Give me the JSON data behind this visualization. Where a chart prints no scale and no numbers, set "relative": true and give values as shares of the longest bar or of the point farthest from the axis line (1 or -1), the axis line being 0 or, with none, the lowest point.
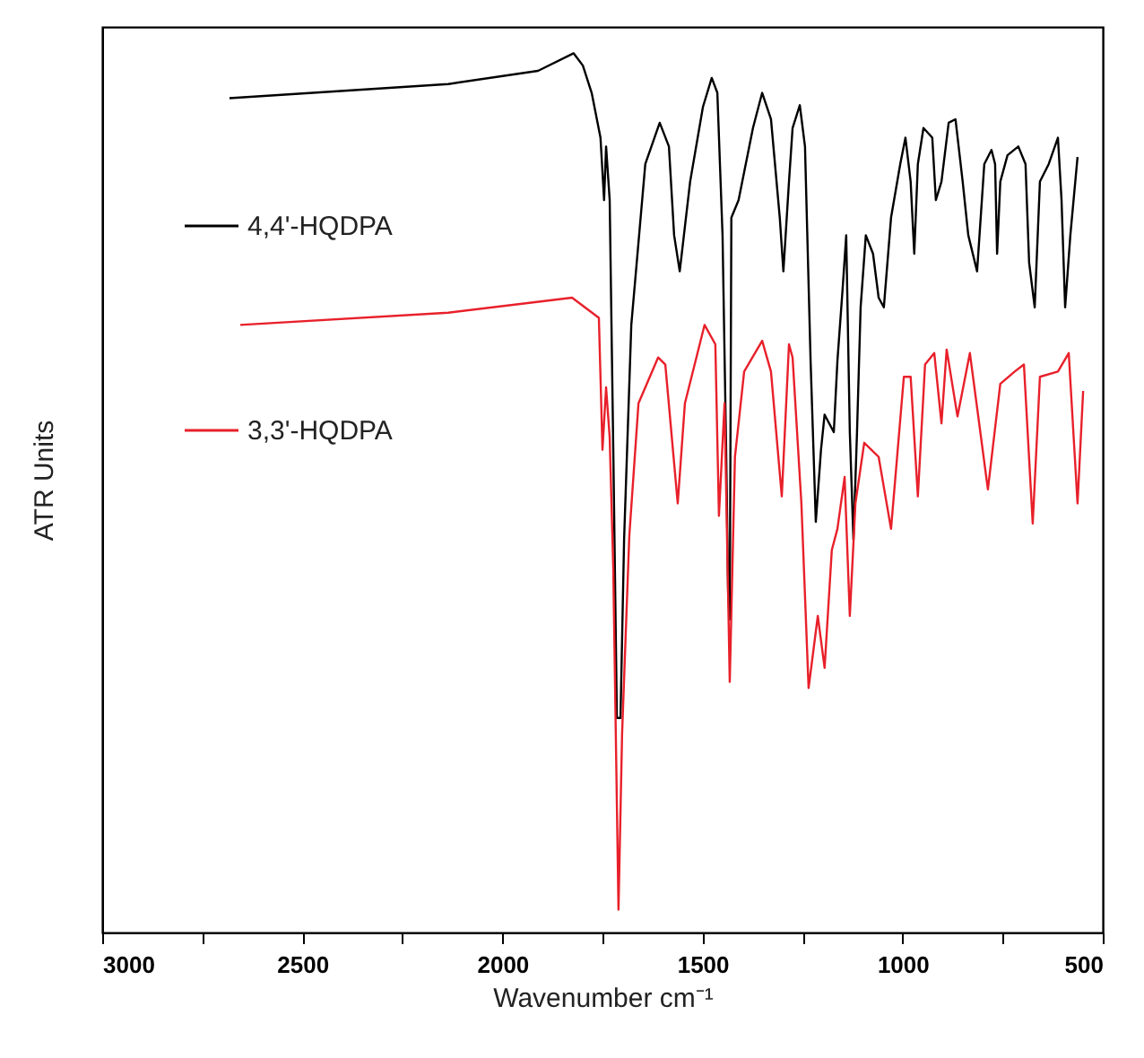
{
  "chart_data": {
    "type": "line",
    "relative": true,
    "xlabel": "Wavenumber cm⁻¹",
    "ylabel": "ATR Units",
    "xlim": [
      3000,
      500
    ],
    "xticks": [
      3000,
      {
        "value": 2750,
        "label": null
      },
      2500,
      {
        "value": 2250,
        "label": null
      },
      2000,
      {
        "value": 1750,
        "label": null
      },
      1500,
      {
        "value": 1250,
        "label": null
      },
      1000,
      {
        "value": 750,
        "label": null
      },
      500
    ],
    "legend": "left",
    "grid": false,
    "marker": "none",
    "line_style": "solid",
    "series": [
      {
        "name": "4,4'-HQDPA",
        "color": "#000000",
        "x": [
          2682,
          2135,
          1911,
          1822,
          1799,
          1777,
          1755,
          1746,
          1741,
          1732,
          1723,
          1714,
          1705,
          1696,
          1678,
          1643,
          1607,
          1584,
          1571,
          1557,
          1531,
          1499,
          1477,
          1463,
          1450,
          1441,
          1436,
          1432,
          1428,
          1410,
          1374,
          1351,
          1329,
          1307,
          1298,
          1284,
          1275,
          1257,
          1244,
          1230,
          1217,
          1204,
          1195,
          1172,
          1163,
          1150,
          1141,
          1132,
          1123,
          1114,
          1105,
          1092,
          1074,
          1060,
          1047,
          1029,
          1006,
          993,
          980,
          971,
          962,
          948,
          926,
          917,
          903,
          885,
          868,
          850,
          836,
          814,
          796,
          778,
          769,
          764,
          756,
          738,
          711,
          693,
          684,
          670,
          657,
          635,
          612,
          603,
          594,
          581,
          563
        ],
        "values": [
          0.949,
          0.965,
          0.98,
          1.0,
          0.986,
          0.955,
          0.904,
          0.833,
          0.894,
          0.833,
          0.549,
          0.244,
          0.244,
          0.447,
          0.691,
          0.874,
          0.921,
          0.894,
          0.793,
          0.752,
          0.854,
          0.939,
          0.972,
          0.955,
          0.793,
          0.549,
          0.386,
          0.356,
          0.813,
          0.833,
          0.915,
          0.955,
          0.925,
          0.813,
          0.752,
          0.854,
          0.915,
          0.941,
          0.894,
          0.65,
          0.467,
          0.549,
          0.589,
          0.569,
          0.65,
          0.732,
          0.793,
          0.569,
          0.447,
          0.569,
          0.711,
          0.793,
          0.772,
          0.722,
          0.711,
          0.813,
          0.874,
          0.904,
          0.854,
          0.772,
          0.874,
          0.915,
          0.904,
          0.833,
          0.854,
          0.921,
          0.925,
          0.854,
          0.793,
          0.752,
          0.874,
          0.89,
          0.874,
          0.772,
          0.854,
          0.884,
          0.894,
          0.874,
          0.762,
          0.711,
          0.854,
          0.874,
          0.904,
          0.833,
          0.711,
          0.793,
          0.882
        ]
      },
      {
        "name": "3,3'-HQDPA",
        "color": "#e8202a",
        "x": [
          2655,
          2135,
          1826,
          1759,
          1750,
          1741,
          1732,
          1723,
          1710,
          1701,
          1683,
          1660,
          1611,
          1593,
          1562,
          1544,
          1495,
          1468,
          1459,
          1445,
          1432,
          1419,
          1396,
          1351,
          1329,
          1302,
          1284,
          1275,
          1253,
          1235,
          1212,
          1195,
          1177,
          1163,
          1145,
          1132,
          1118,
          1096,
          1060,
          1029,
          997,
          980,
          962,
          944,
          921,
          903,
          890,
          863,
          832,
          787,
          756,
          720,
          697,
          675,
          657,
          612,
          585,
          563,
          549
        ],
        "values": [
          0.691,
          0.705,
          0.722,
          0.699,
          0.549,
          0.62,
          0.563,
          0.413,
          0.026,
          0.226,
          0.451,
          0.602,
          0.654,
          0.646,
          0.488,
          0.602,
          0.691,
          0.669,
          0.474,
          0.602,
          0.285,
          0.541,
          0.638,
          0.673,
          0.638,
          0.496,
          0.669,
          0.654,
          0.488,
          0.278,
          0.36,
          0.301,
          0.435,
          0.459,
          0.518,
          0.36,
          0.488,
          0.557,
          0.541,
          0.459,
          0.632,
          0.632,
          0.496,
          0.646,
          0.659,
          0.579,
          0.663,
          0.587,
          0.659,
          0.504,
          0.624,
          0.638,
          0.646,
          0.465,
          0.632,
          0.638,
          0.659,
          0.488,
          0.616
        ]
      }
    ]
  }
}
